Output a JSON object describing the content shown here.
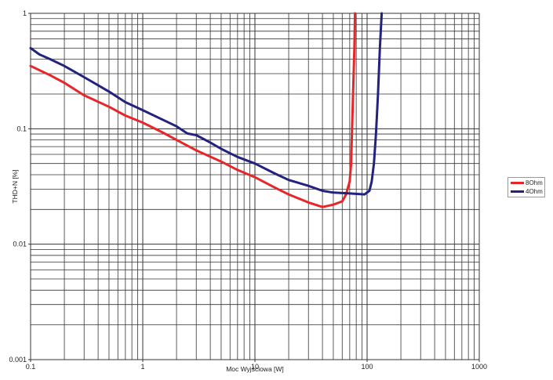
{
  "chart_data": {
    "type": "line",
    "title": "",
    "xlabel": "Moc Wyjściowa [W]",
    "ylabel": "THD+N [%]",
    "xscale": "log",
    "yscale": "log",
    "xlim": [
      0.1,
      1000
    ],
    "ylim": [
      0.001,
      1
    ],
    "grid": true,
    "legend_position": "right",
    "x_ticks": [
      "0.1",
      "1",
      "10",
      "100",
      "1000"
    ],
    "y_ticks": [
      "0.001",
      "0.01",
      "0.1",
      "1"
    ],
    "series": [
      {
        "name": "8Ohm",
        "color": "#e8262a",
        "x": [
          0.1,
          0.15,
          0.2,
          0.3,
          0.5,
          0.7,
          1,
          1.5,
          2,
          3,
          5,
          7,
          10,
          15,
          20,
          30,
          40,
          50,
          60,
          65,
          70,
          72,
          75,
          77,
          78
        ],
        "y": [
          0.35,
          0.29,
          0.25,
          0.195,
          0.155,
          0.13,
          0.113,
          0.093,
          0.08,
          0.065,
          0.052,
          0.044,
          0.038,
          0.031,
          0.027,
          0.023,
          0.021,
          0.022,
          0.0235,
          0.027,
          0.035,
          0.05,
          0.2,
          0.5,
          1
        ]
      },
      {
        "name": "4Ohm",
        "color": "#23237e",
        "x": [
          0.1,
          0.12,
          0.15,
          0.2,
          0.3,
          0.5,
          0.7,
          1,
          1.5,
          2,
          2.5,
          3,
          4,
          5,
          7,
          10,
          15,
          20,
          30,
          40,
          50,
          70,
          95,
          105,
          110,
          115,
          120,
          125,
          130,
          135
        ],
        "y": [
          0.5,
          0.44,
          0.4,
          0.35,
          0.28,
          0.21,
          0.17,
          0.145,
          0.12,
          0.105,
          0.091,
          0.088,
          0.076,
          0.067,
          0.057,
          0.05,
          0.041,
          0.036,
          0.032,
          0.029,
          0.028,
          0.0275,
          0.027,
          0.029,
          0.035,
          0.05,
          0.09,
          0.2,
          0.5,
          1
        ]
      }
    ]
  },
  "legend": {
    "items": [
      {
        "label": "8Ohm",
        "color": "#e8262a"
      },
      {
        "label": "4Ohm",
        "color": "#23237e"
      }
    ]
  }
}
